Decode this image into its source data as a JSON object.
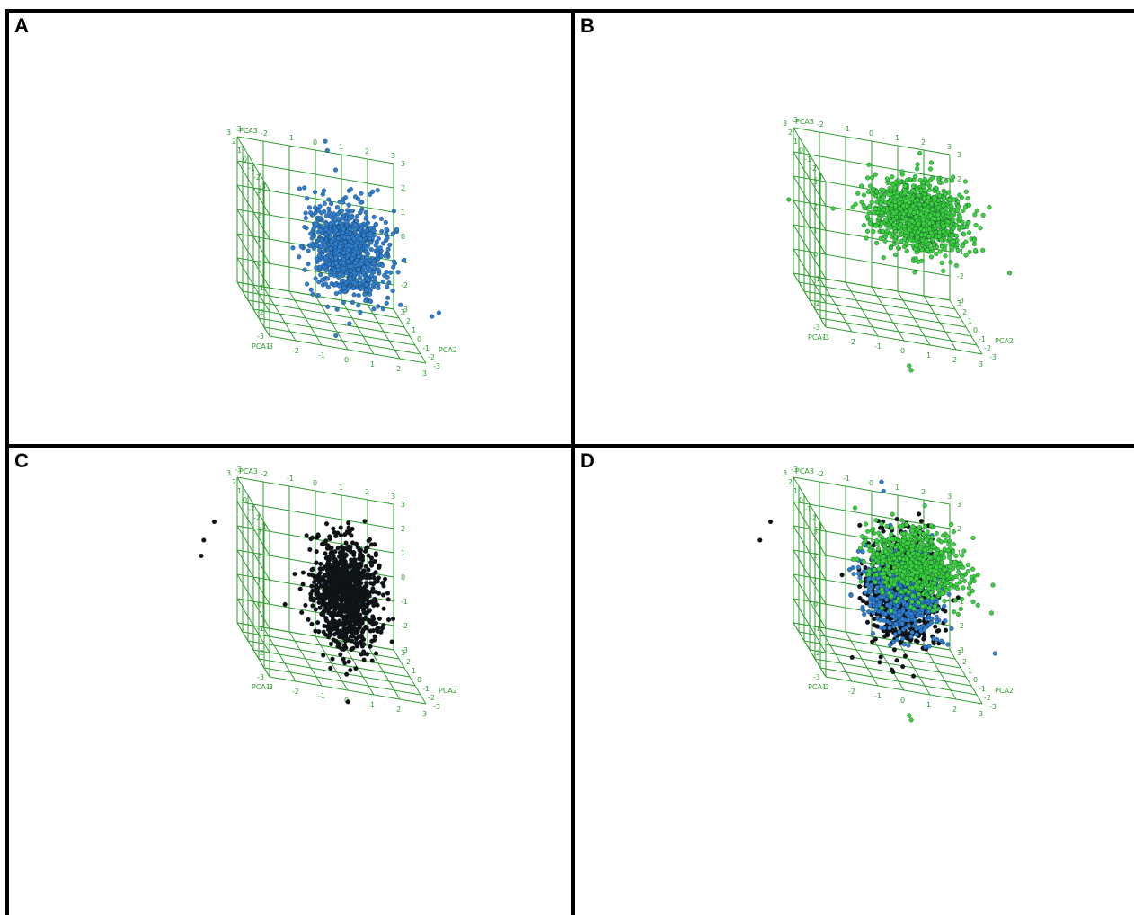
{
  "colors": {
    "grid": "#2f9e2f",
    "seriesA": "#2f7fd0",
    "seriesB": "#3ad23a",
    "seriesC": "#111111",
    "border": "#000000"
  },
  "chart_data": [
    {
      "panel": "A",
      "type": "scatter",
      "title": "",
      "xlabel": "PCA1",
      "ylabel": "PCA2",
      "zlabel": "PCA3",
      "ticks": [
        "-3",
        "-2",
        "-1",
        "0",
        "1",
        "2",
        "3"
      ],
      "xlim": [
        -3,
        3
      ],
      "ylim": [
        -3,
        3
      ],
      "zlim": [
        -3,
        3
      ],
      "series": [
        {
          "color": "#2f7fd0",
          "center": [
            0.3,
            -1.4,
            0.5
          ],
          "spread": [
            0.7,
            0.6,
            0.9
          ],
          "n": 900,
          "outliers": [
            [
              0.5,
              3.2,
              3
            ],
            [
              0.4,
              3.1,
              3.4
            ],
            [
              3.6,
              -2.5,
              -1
            ],
            [
              3.4,
              -2.2,
              -1.3
            ]
          ]
        }
      ]
    },
    {
      "panel": "B",
      "type": "scatter",
      "title": "",
      "xlabel": "PCA1",
      "ylabel": "PCA2",
      "zlabel": "PCA3",
      "ticks": [
        "-3",
        "-2",
        "-1",
        "0",
        "1",
        "2",
        "3"
      ],
      "xlim": [
        -3,
        3
      ],
      "ylim": [
        -3,
        3
      ],
      "zlim": [
        -3,
        3
      ],
      "series": [
        {
          "color": "#3ad23a",
          "center": [
            1,
            -0.8,
            1.5
          ],
          "spread": [
            0.9,
            0.6,
            0.7
          ],
          "n": 1100,
          "outliers": [
            [
              0.2,
              -3,
              -4
            ],
            [
              0.3,
              -2.9,
              -4.2
            ],
            [
              -3.8,
              0,
              1
            ]
          ]
        }
      ]
    },
    {
      "panel": "C",
      "type": "scatter",
      "title": "",
      "xlabel": "PCA1",
      "ylabel": "PCA2",
      "zlabel": "PCA3",
      "ticks": [
        "-3",
        "-2",
        "-1",
        "0",
        "1",
        "2",
        "3"
      ],
      "xlim": [
        -3,
        3
      ],
      "ylim": [
        -3,
        3
      ],
      "zlim": [
        -3,
        3
      ],
      "series": [
        {
          "color": "#111111",
          "center": [
            0.4,
            -0.6,
            0.2
          ],
          "spread": [
            0.6,
            0.7,
            1.1
          ],
          "n": 1000,
          "outliers": [
            [
              -4.5,
              0,
              2
            ],
            [
              -4.8,
              0.5,
              1
            ],
            [
              -5,
              0,
              0.5
            ]
          ]
        }
      ]
    },
    {
      "panel": "D",
      "type": "scatter",
      "title": "",
      "xlabel": "PCA1",
      "ylabel": "PCA2",
      "zlabel": "PCA3",
      "ticks": [
        "-3",
        "-2",
        "-1",
        "0",
        "1",
        "2",
        "3"
      ],
      "xlim": [
        -3,
        3
      ],
      "ylim": [
        -3,
        3
      ],
      "zlim": [
        -3,
        3
      ],
      "series": [
        {
          "color": "#111111",
          "center": [
            0.4,
            -0.6,
            0.2
          ],
          "spread": [
            0.6,
            0.7,
            1.1
          ],
          "n": 700,
          "outliers": [
            [
              -4.5,
              0,
              2
            ],
            [
              -4.8,
              0.5,
              1
            ]
          ]
        },
        {
          "color": "#2f7fd0",
          "center": [
            0.3,
            -1.4,
            0.5
          ],
          "spread": [
            0.7,
            0.6,
            0.9
          ],
          "n": 600,
          "outliers": [
            [
              0.5,
              3.2,
              3
            ],
            [
              0.4,
              3.1,
              3.4
            ],
            [
              3.6,
              -2.5,
              -1
            ]
          ]
        },
        {
          "color": "#3ad23a",
          "center": [
            1,
            -0.8,
            1.5
          ],
          "spread": [
            0.9,
            0.6,
            0.7
          ],
          "n": 800,
          "outliers": [
            [
              0.2,
              -3,
              -4
            ],
            [
              0.3,
              -2.9,
              -4.2
            ]
          ]
        }
      ]
    }
  ],
  "panels": [
    {
      "letter": "A"
    },
    {
      "letter": "B"
    },
    {
      "letter": "C"
    },
    {
      "letter": "D"
    }
  ]
}
